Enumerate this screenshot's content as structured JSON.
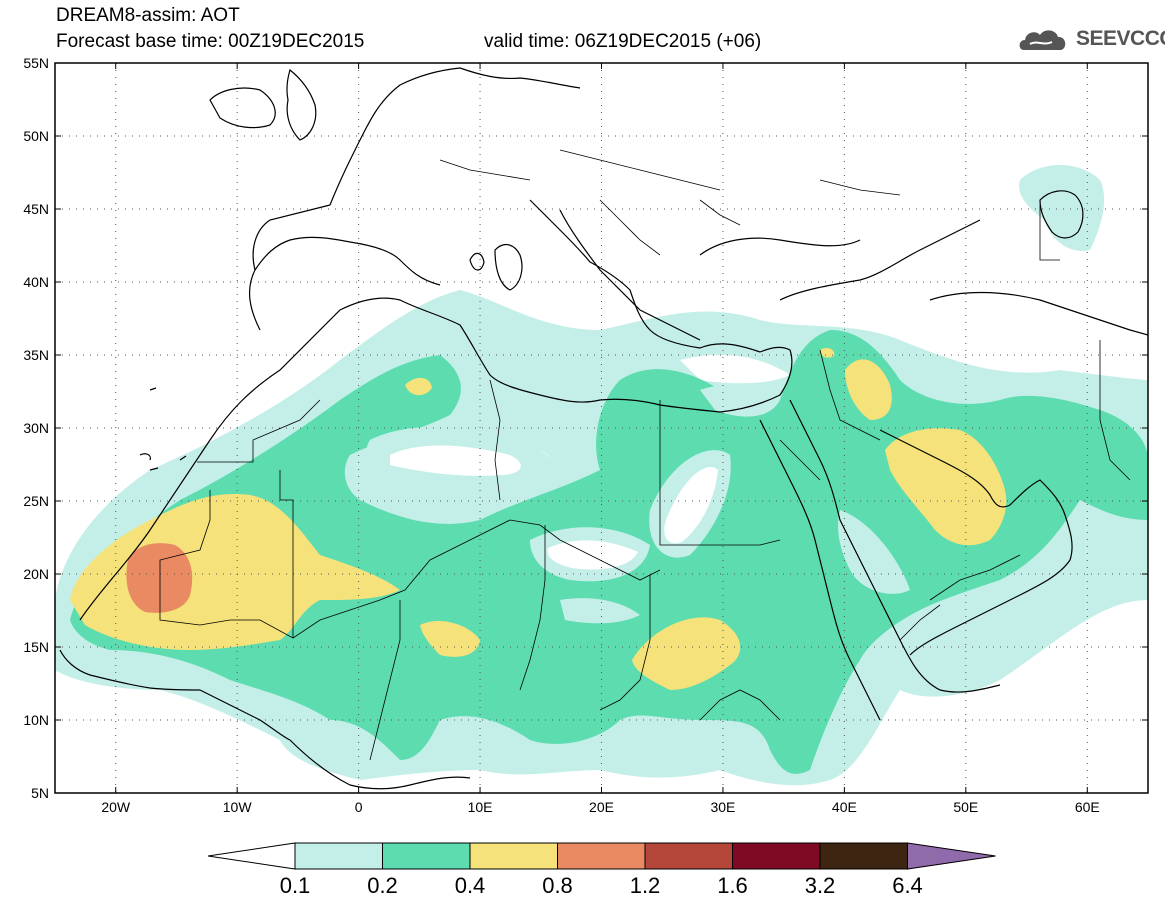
{
  "header": {
    "line1": "DREAM8-assim: AOT",
    "line2": "Forecast base time: 00Z19DEC2015",
    "line3": "valid time: 06Z19DEC2015 (+06)"
  },
  "logo": {
    "text": "SEEVCCC",
    "icon": "cloud-logo-icon"
  },
  "map": {
    "lon_range": [
      -25,
      65
    ],
    "lat_range": [
      5,
      55
    ],
    "lat_labels": [
      "55N",
      "50N",
      "45N",
      "40N",
      "35N",
      "30N",
      "25N",
      "20N",
      "15N",
      "10N",
      "5N"
    ],
    "lat_values": [
      55,
      50,
      45,
      40,
      35,
      30,
      25,
      20,
      15,
      10,
      5
    ],
    "lon_labels": [
      "20W",
      "10W",
      "0",
      "10E",
      "20E",
      "30E",
      "40E",
      "50E",
      "60E"
    ],
    "lon_values": [
      -20,
      -10,
      0,
      10,
      20,
      30,
      40,
      50,
      60
    ],
    "gridlines": true
  },
  "colorbar": {
    "labels": [
      "0.1",
      "0.2",
      "0.4",
      "0.8",
      "1.2",
      "1.6",
      "3.2",
      "6.4"
    ],
    "colors": [
      "#c4efe8",
      "#5ddcb0",
      "#f5e27a",
      "#e98a63",
      "#b5463a",
      "#7f0a24",
      "#3d2512"
    ],
    "over_color": "#8f6bab",
    "under_color": "#ffffff"
  }
}
